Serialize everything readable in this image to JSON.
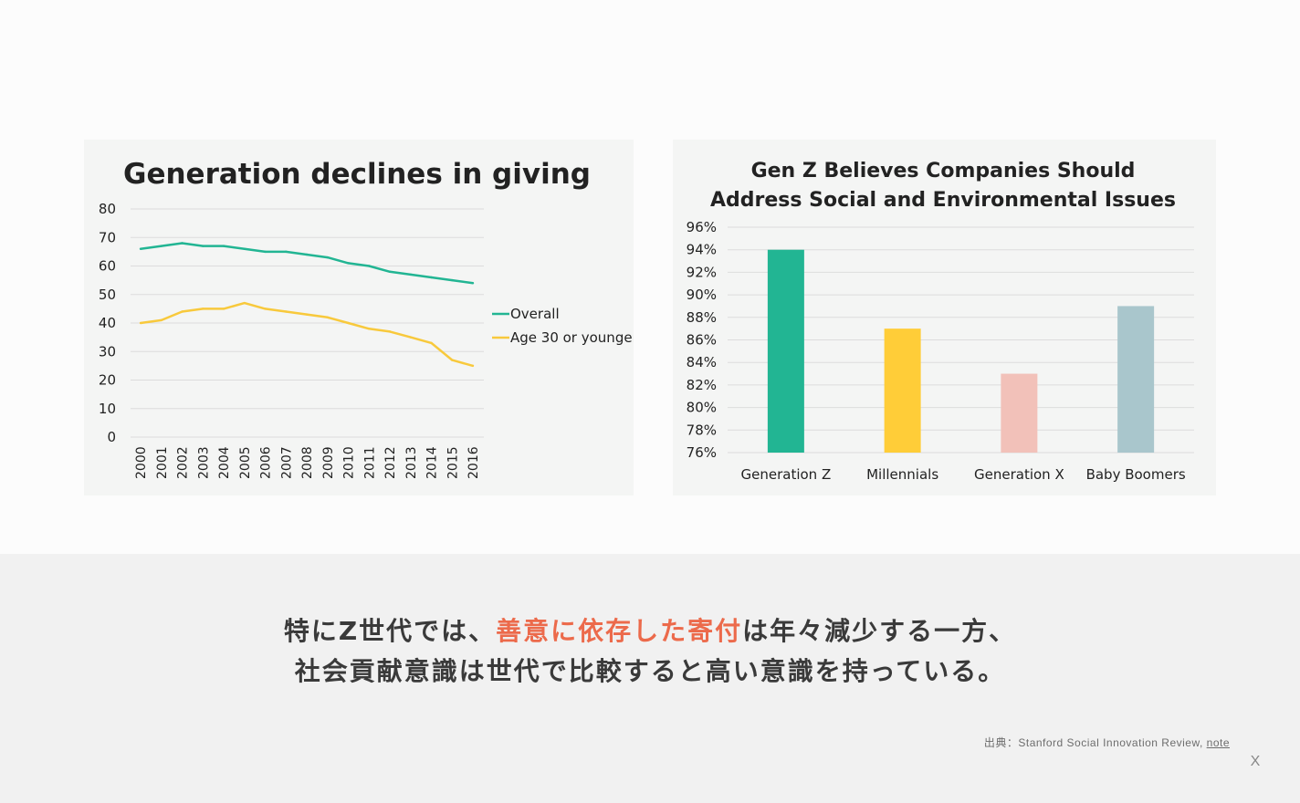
{
  "caption": {
    "line1_before": "特にZ世代では、",
    "line1_highlight": "善意に依存した寄付",
    "line1_after": "は年々減少する一方、",
    "line2": "社会貢献意識は世代で比較すると高い意識を持っている。"
  },
  "source": {
    "prefix": "出典：Stanford Social Innovation Review, ",
    "link": "note"
  },
  "close_label": "X",
  "chart_data": [
    {
      "type": "line",
      "title": "Generation declines in giving",
      "x": [
        "2000",
        "2001",
        "2002",
        "2003",
        "2004",
        "2005",
        "2006",
        "2007",
        "2008",
        "2009",
        "2010",
        "2011",
        "2012",
        "2013",
        "2014",
        "2015",
        "2016"
      ],
      "ylim": [
        0,
        80
      ],
      "yticks": [
        "0",
        "10",
        "20",
        "30",
        "40",
        "50",
        "60",
        "70",
        "80"
      ],
      "grid": true,
      "legend": "right",
      "series": [
        {
          "name": "Overall",
          "color": "#22b593",
          "values": [
            66,
            67,
            68,
            67,
            67,
            66,
            65,
            65,
            64,
            63,
            61,
            60,
            58,
            57,
            56,
            55,
            54
          ]
        },
        {
          "name": "Age 30 or younger",
          "color": "#f8c93c",
          "values": [
            40,
            41,
            44,
            45,
            45,
            47,
            45,
            44,
            43,
            42,
            40,
            38,
            37,
            35,
            33,
            27,
            25
          ]
        }
      ]
    },
    {
      "type": "bar",
      "title": "Gen Z Believes Companies Should Address Social and Environmental Issues",
      "title_lines": [
        "Gen Z Believes Companies Should",
        "Address Social and Environmental Issues"
      ],
      "categories": [
        "Generation Z",
        "Millennials",
        "Generation X",
        "Baby Boomers"
      ],
      "values": [
        94,
        87,
        83,
        89
      ],
      "colors": [
        "#22b593",
        "#ffcd38",
        "#f2c1b9",
        "#a9c6cc"
      ],
      "ylim": [
        76,
        96
      ],
      "yticks": [
        "76%",
        "78%",
        "80%",
        "82%",
        "84%",
        "86%",
        "88%",
        "90%",
        "92%",
        "94%",
        "96%"
      ],
      "grid": true
    }
  ]
}
